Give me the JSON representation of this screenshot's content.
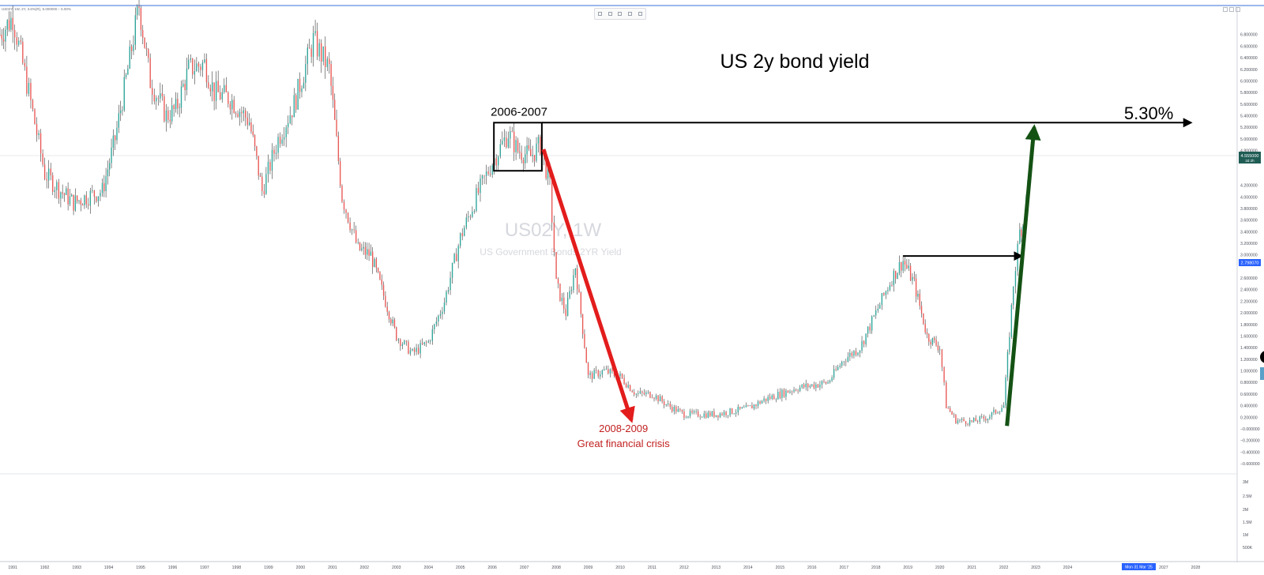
{
  "symbol_info": "US02Y, 1W, 2Y, 3.6%(R), 5.000000 ↑ 5.00%",
  "window_title": "",
  "toolbar": {
    "icons": [
      "grid-icon",
      "settings-icon",
      "compare-icon",
      "trash-icon",
      "more-icon"
    ]
  },
  "watermark": {
    "symbol": "US02Y, 1W",
    "name": "US Government Bonds 2YR Yield"
  },
  "colors": {
    "up": "#26a69a",
    "down": "#ef5350",
    "candle_body": "#2a2a2a",
    "annotation_black": "#000000",
    "annotation_red": "#e31c1c",
    "annotation_green": "#145214",
    "price_badge_current": "#1f5c54",
    "price_badge_prev": "#2962ff",
    "date_badge": "#2962ff"
  },
  "chart_data": {
    "type": "candlestick",
    "title": "US 2y bond yield",
    "xlabel": "",
    "ylabel": "",
    "xlim": [
      1990.6,
      2029.3
    ],
    "ylim": [
      -0.75,
      7.3
    ],
    "x_ticks": [
      "1991",
      "1992",
      "1993",
      "1994",
      "1995",
      "1996",
      "1997",
      "1998",
      "1999",
      "2000",
      "2001",
      "2002",
      "2003",
      "2004",
      "2005",
      "2006",
      "2007",
      "2008",
      "2009",
      "2010",
      "2011",
      "2012",
      "2013",
      "2014",
      "2015",
      "2016",
      "2017",
      "2018",
      "2019",
      "2020",
      "2021",
      "2022",
      "2023",
      "2024",
      "2026",
      "2027",
      "2028"
    ],
    "y_ticks": [
      "6.800000",
      "6.600000",
      "6.400000",
      "6.200000",
      "6.000000",
      "5.800000",
      "5.600000",
      "5.400000",
      "5.200000",
      "5.000000",
      "4.800000",
      "4.600000",
      "4.200000",
      "4.000000",
      "3.800000",
      "3.600000",
      "3.400000",
      "3.200000",
      "3.000000",
      "2.600000",
      "2.400000",
      "2.200000",
      "2.000000",
      "1.800000",
      "1.600000",
      "1.400000",
      "1.200000",
      "1.000000",
      "0.800000",
      "0.600000",
      "0.400000",
      "0.200000",
      "−0.000000",
      "−0.200000",
      "−0.400000",
      "−0.600000"
    ],
    "y_tick_values": [
      6.8,
      6.6,
      6.4,
      6.2,
      6.0,
      5.8,
      5.6,
      5.4,
      5.2,
      5.0,
      4.8,
      4.6,
      4.2,
      4.0,
      3.8,
      3.6,
      3.4,
      3.2,
      3.0,
      2.6,
      2.4,
      2.2,
      2.0,
      1.8,
      1.6,
      1.4,
      1.2,
      1.0,
      0.8,
      0.6,
      0.4,
      0.2,
      0.0,
      -0.2,
      -0.4,
      -0.6
    ],
    "series": [
      {
        "x": [
          1990.6,
          1991.0,
          1991.5,
          1992.0,
          1992.5,
          1992.9,
          1993.3,
          1993.8,
          1994.2,
          1994.6,
          1994.95,
          1995.3,
          1995.8,
          1996.1,
          1996.5,
          1997.0,
          1997.3,
          1997.8,
          1998.4,
          1998.8,
          1999.3,
          1999.8,
          2000.4,
          2000.9,
          2001.3,
          2001.8,
          2002.2,
          2002.6,
          2003.0,
          2003.5,
          2004.0,
          2004.5,
          2005.0,
          2005.5,
          2006.0,
          2006.5,
          2006.8,
          2007.2,
          2007.5,
          2007.8,
          2008.0,
          2008.3,
          2008.6,
          2009.0,
          2009.5,
          2010.0,
          2010.5,
          2011.0,
          2011.5,
          2012.0,
          2012.5,
          2013.0,
          2013.5,
          2014.0,
          2014.5,
          2015.0,
          2015.5,
          2016.0,
          2016.5,
          2017.0,
          2017.5,
          2018.0,
          2018.5,
          2018.85,
          2019.2,
          2019.6,
          2020.0,
          2020.2,
          2020.5,
          2021.0,
          2021.5,
          2022.0,
          2022.3,
          2022.5,
          2022.65,
          2022.8
        ],
        "y": [
          6.8,
          7.1,
          5.8,
          4.4,
          4.1,
          3.9,
          4.0,
          4.1,
          5.0,
          6.2,
          7.3,
          6.0,
          5.4,
          5.5,
          6.2,
          6.3,
          5.8,
          5.7,
          5.3,
          4.1,
          5.0,
          5.6,
          6.7,
          6.2,
          4.0,
          3.1,
          3.0,
          2.3,
          1.6,
          1.3,
          1.5,
          2.2,
          3.3,
          4.0,
          4.6,
          5.1,
          4.8,
          4.7,
          4.9,
          4.2,
          2.5,
          2.0,
          2.8,
          0.9,
          1.0,
          0.9,
          0.6,
          0.6,
          0.4,
          0.25,
          0.25,
          0.25,
          0.3,
          0.35,
          0.5,
          0.6,
          0.7,
          0.75,
          0.8,
          1.2,
          1.4,
          2.0,
          2.6,
          2.9,
          2.5,
          1.6,
          1.4,
          0.4,
          0.15,
          0.12,
          0.2,
          0.4,
          2.5,
          3.4,
          3.6,
          4.55
        ],
        "name": ""
      }
    ],
    "current_value": "4.555000",
    "current_value_sub": "2d 2h",
    "previous_value": "2.798070",
    "date_badge": "Mon 31 Mar '25",
    "volume_ticks": [
      "3M",
      "2.5M",
      "2M",
      "1.5M",
      "1M",
      "500K"
    ],
    "annotations": {
      "box_label": "2006-2007",
      "box_range": {
        "x": [
          2006.05,
          2007.55
        ],
        "y": [
          4.45,
          5.28
        ]
      },
      "target_label": "5.30%",
      "target_level": 5.3,
      "gfc_label_1": "2008-2009",
      "gfc_label_2": "Great financial crisis",
      "red_arrow": {
        "from": [
          2007.6,
          4.82
        ],
        "to": [
          2010.35,
          0.15
        ]
      },
      "black_arrow_2018": {
        "from": [
          2018.85,
          2.98
        ],
        "to": [
          2022.55,
          2.98
        ]
      },
      "green_arrow": {
        "from": [
          2022.1,
          0.05
        ],
        "to": [
          2022.95,
          5.2
        ]
      },
      "top_arrow": {
        "from": [
          2007.55,
          5.28
        ],
        "to": [
          2027.85,
          5.28
        ]
      }
    }
  }
}
